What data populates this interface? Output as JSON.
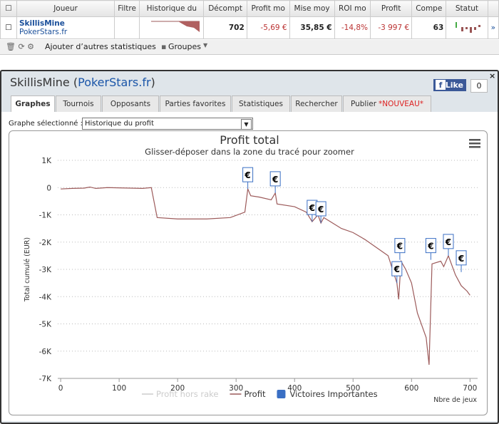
{
  "table": {
    "headers": [
      "Joueur",
      "Filtre",
      "Historique du",
      "Décompt",
      "Profit mo",
      "Mise moy",
      "ROI mo",
      "Profit",
      "Compe",
      "Statut"
    ],
    "row": {
      "player": "SkillisMine",
      "site": "PokerStars.fr",
      "count": "702",
      "avg_profit": "-5,69 €",
      "avg_stake": "35,85 €",
      "roi": "-14,8%",
      "profit": "-3 997 €",
      "compe": "63",
      "link": "»"
    }
  },
  "toolbar": {
    "add_stats": "Ajouter d’autres statistiques",
    "groups": "Groupes"
  },
  "dialog": {
    "title": [
      "SkillisMine (",
      "PokerStars.fr",
      ")"
    ],
    "like": "Like",
    "like_count": "0",
    "tabs": [
      "Graphes",
      "Tournois",
      "Opposants",
      "Parties favorites",
      "Statistiques",
      "Rechercher",
      "Publier"
    ],
    "new_badge": "*NOUVEAU*",
    "select_label": "Graphe sélectionné :",
    "select_value": "Historique du profit"
  },
  "chart_data": {
    "type": "line",
    "title": "Profit total",
    "subtitle": "Glisser-déposer dans la zone du tracé pour zoomer",
    "x_label": "Nbre de jeux",
    "y_label": "Total cumulé (EUR)",
    "xlim": [
      -5,
      713
    ],
    "xticks": [
      0,
      100,
      200,
      300,
      400,
      500,
      600,
      700
    ],
    "ylim": [
      -7000,
      1000
    ],
    "yticks": [
      {
        "value": 1000,
        "label": "1K"
      },
      0,
      {
        "value": -1000,
        "label": "-1K"
      },
      {
        "value": -2000,
        "label": "-2K"
      },
      {
        "value": -3000,
        "label": "-3K"
      },
      {
        "value": -4000,
        "label": "-4K"
      },
      {
        "value": -5000,
        "label": "-5K"
      },
      {
        "value": -6000,
        "label": "-6K"
      },
      {
        "value": -7000,
        "label": "-7K"
      }
    ],
    "grid": true,
    "x": [
      0,
      20,
      40,
      50,
      60,
      80,
      100,
      120,
      140,
      155,
      165,
      200,
      250,
      290,
      315,
      320,
      325,
      340,
      360,
      367,
      370,
      400,
      420,
      430,
      440,
      445,
      450,
      480,
      500,
      520,
      540,
      560,
      575,
      578,
      582,
      590,
      600,
      610,
      625,
      630,
      632,
      635,
      650,
      655,
      663,
      675,
      685,
      695,
      700
    ],
    "series": [
      {
        "name": "Profit hors rake",
        "color": "#cccccc",
        "hidden": true
      },
      {
        "name": "Profit",
        "color": "#9c5a5a",
        "values": [
          -50,
          -30,
          -20,
          20,
          -30,
          0,
          -10,
          -20,
          -30,
          0,
          -1100,
          -1150,
          -1150,
          -1100,
          -900,
          -50,
          -300,
          -350,
          -450,
          -200,
          -600,
          -700,
          -900,
          -1250,
          -1000,
          -1300,
          -1100,
          -1500,
          -1650,
          -1900,
          -2200,
          -2500,
          -3500,
          -4100,
          -2700,
          -3000,
          -3500,
          -4600,
          -5500,
          -6500,
          -5000,
          -2800,
          -2700,
          -2900,
          -2500,
          -3200,
          -3600,
          -3800,
          -3950
        ]
      }
    ],
    "flags": {
      "name": "Victoires Importantes",
      "color": "#3a6fc4",
      "x": [
        320,
        367,
        430,
        445,
        575,
        580,
        633,
        663,
        685
      ],
      "y": [
        -50,
        -200,
        -1250,
        -1300,
        -3500,
        -2650,
        -2650,
        -2500,
        -3100
      ],
      "labels": [
        "€",
        "€",
        "€",
        "€",
        "€",
        "€",
        "€",
        "€",
        "€"
      ]
    }
  }
}
